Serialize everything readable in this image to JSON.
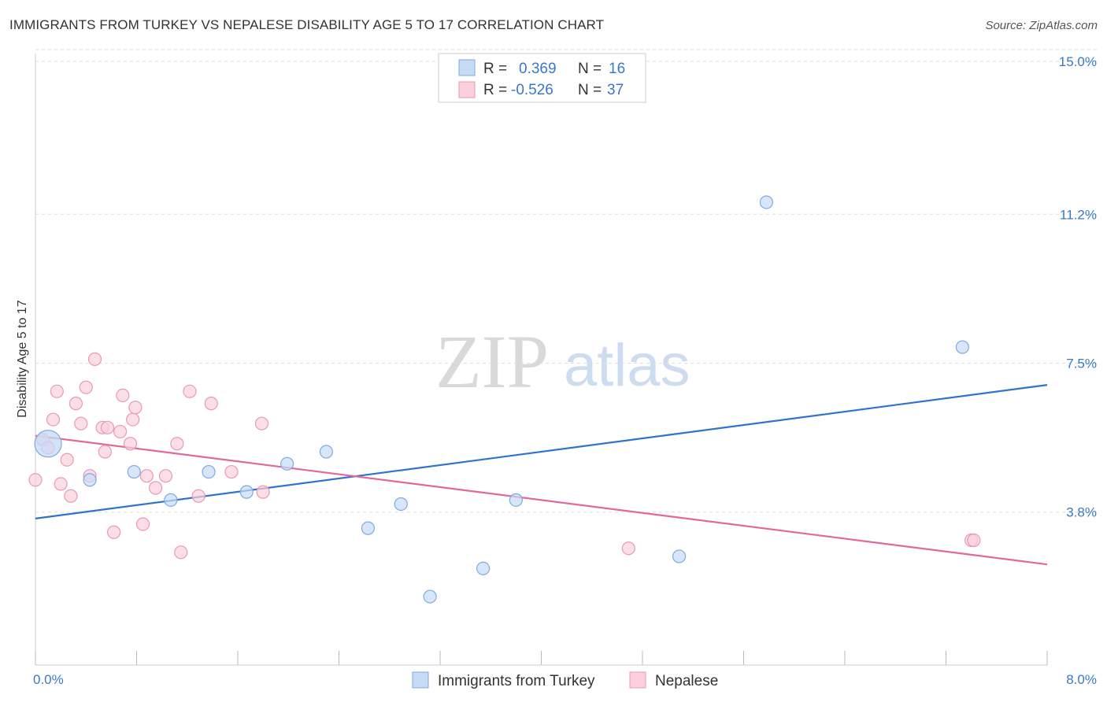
{
  "title": "IMMIGRANTS FROM TURKEY VS NEPALESE DISABILITY AGE 5 TO 17 CORRELATION CHART",
  "source": "Source: ZipAtlas.com",
  "watermark": {
    "zip": "ZIP",
    "atlas": "atlas"
  },
  "legend": {
    "rows": [
      {
        "r_label": "R =",
        "r_value": "0.369",
        "n_label": "N =",
        "n_value": "16",
        "color": "#a9c8f0"
      },
      {
        "r_label": "R =",
        "r_value": "-0.526",
        "n_label": "N =",
        "n_value": "37",
        "color": "#f5b8cb"
      }
    ]
  },
  "colors": {
    "blue_fill": "#c6dbf6",
    "blue_stroke": "#7fa9e0",
    "blue_line": "#2f72d0",
    "pink_fill": "#f9d0dc",
    "pink_stroke": "#e99ab3",
    "pink_line": "#e3679a",
    "grid": "#dddddd",
    "axis_text": "#3a78c9"
  },
  "chart_data": {
    "type": "scatter",
    "title": "IMMIGRANTS FROM TURKEY VS NEPALESE DISABILITY AGE 5 TO 17 CORRELATION CHART",
    "xlabel": "",
    "ylabel": "Disability Age 5 to 17",
    "xlim": [
      0.0,
      8.0
    ],
    "ylim": [
      0.0,
      15.0
    ],
    "x_tick_labels": [
      "0.0%",
      "8.0%"
    ],
    "y_ticks": [
      3.8,
      7.5,
      11.2,
      15.0
    ],
    "y_tick_labels": [
      "3.8%",
      "7.5%",
      "11.2%",
      "15.0%"
    ],
    "grid": true,
    "series": [
      {
        "name": "Immigrants from Turkey",
        "color": "#7fa9e0",
        "points": [
          [
            0.1,
            5.5
          ],
          [
            0.43,
            4.6
          ],
          [
            0.78,
            4.8
          ],
          [
            1.07,
            4.1
          ],
          [
            1.37,
            4.8
          ],
          [
            1.67,
            4.3
          ],
          [
            1.99,
            5.0
          ],
          [
            2.3,
            5.3
          ],
          [
            2.63,
            3.4
          ],
          [
            2.89,
            4.0
          ],
          [
            3.12,
            1.7
          ],
          [
            3.54,
            2.4
          ],
          [
            3.8,
            4.1
          ],
          [
            5.09,
            2.7
          ],
          [
            5.78,
            11.5
          ],
          [
            7.33,
            7.9
          ]
        ],
        "trend": [
          [
            0.0,
            3.64
          ],
          [
            8.0,
            6.96
          ]
        ]
      },
      {
        "name": "Nepalese",
        "color": "#e99ab3",
        "points": [
          [
            0.0,
            4.6
          ],
          [
            0.06,
            5.6
          ],
          [
            0.1,
            5.4
          ],
          [
            0.14,
            6.1
          ],
          [
            0.17,
            6.8
          ],
          [
            0.2,
            4.5
          ],
          [
            0.25,
            5.1
          ],
          [
            0.28,
            4.2
          ],
          [
            0.32,
            6.5
          ],
          [
            0.36,
            6.0
          ],
          [
            0.4,
            6.9
          ],
          [
            0.43,
            4.7
          ],
          [
            0.47,
            7.6
          ],
          [
            0.53,
            5.9
          ],
          [
            0.55,
            5.3
          ],
          [
            0.57,
            5.9
          ],
          [
            0.62,
            3.3
          ],
          [
            0.67,
            5.8
          ],
          [
            0.69,
            6.7
          ],
          [
            0.75,
            5.5
          ],
          [
            0.77,
            6.1
          ],
          [
            0.79,
            6.4
          ],
          [
            0.85,
            3.5
          ],
          [
            0.88,
            4.7
          ],
          [
            0.95,
            4.4
          ],
          [
            1.03,
            4.7
          ],
          [
            1.12,
            5.5
          ],
          [
            1.15,
            2.8
          ],
          [
            1.22,
            6.8
          ],
          [
            1.29,
            4.2
          ],
          [
            1.39,
            6.5
          ],
          [
            1.55,
            4.8
          ],
          [
            1.79,
            6.0
          ],
          [
            1.8,
            4.3
          ],
          [
            4.69,
            2.9
          ],
          [
            7.4,
            3.1
          ],
          [
            7.42,
            3.1
          ]
        ],
        "trend": [
          [
            0.0,
            5.7
          ],
          [
            8.0,
            2.5
          ]
        ]
      }
    ],
    "legend_position": "top-center"
  },
  "bottom_legend": [
    "Immigrants from Turkey",
    "Nepalese"
  ]
}
